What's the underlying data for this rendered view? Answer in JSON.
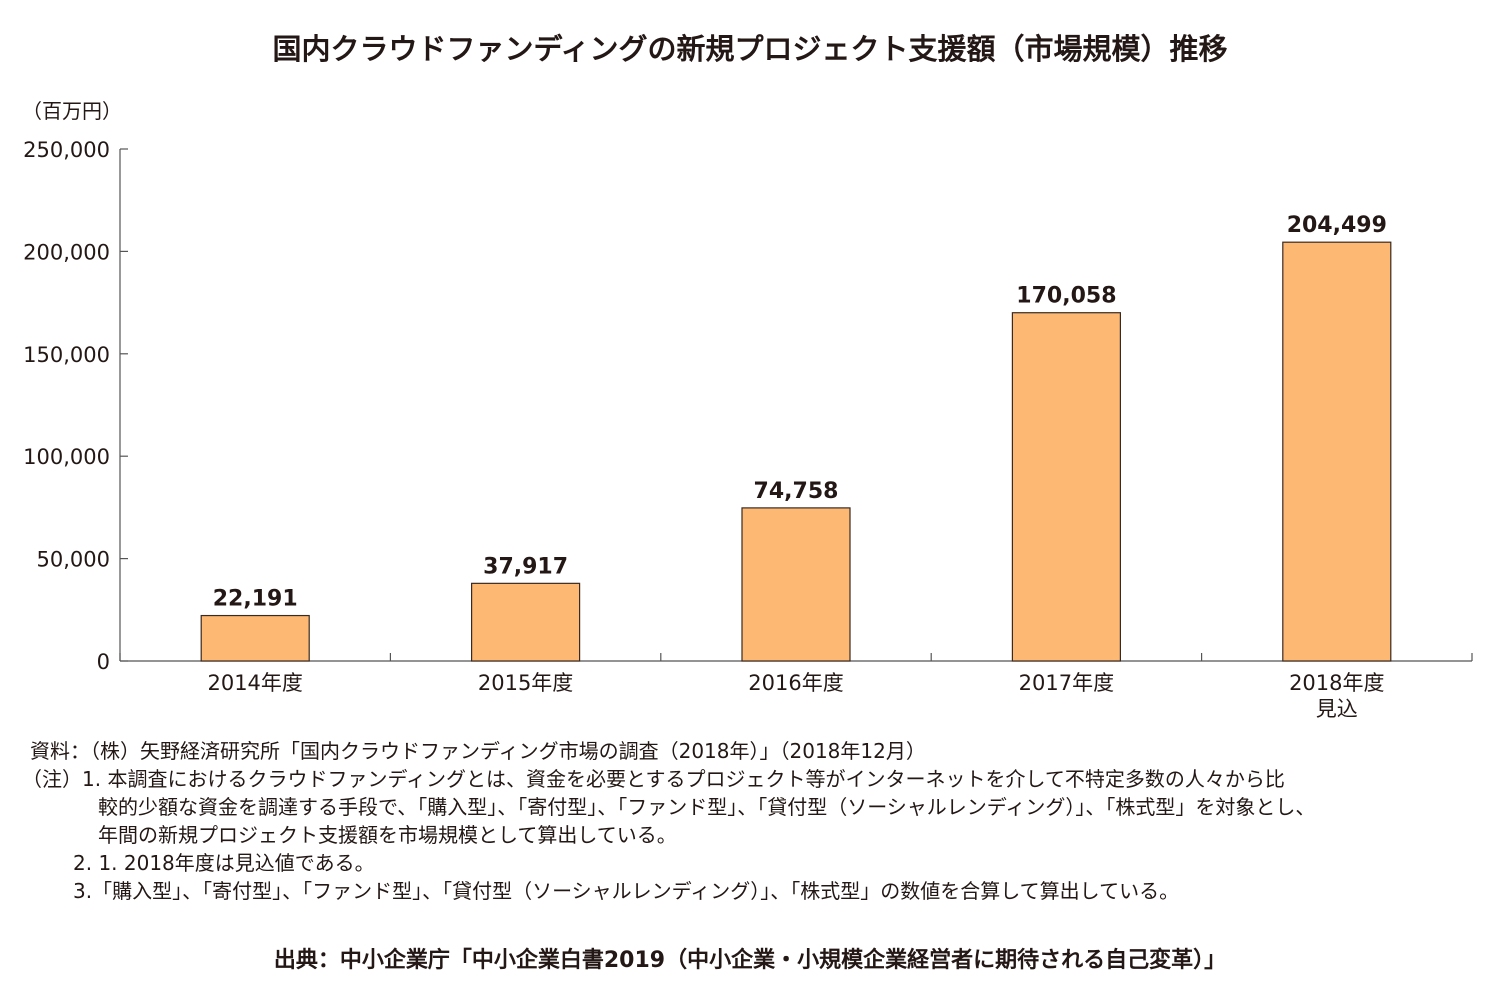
{
  "chart_data": {
    "type": "bar",
    "title": "国内クラウドファンディングの新規プロジェクト支援額（市場規模）推移",
    "ylabel": "（百万円）",
    "xlabel": "",
    "categories": [
      "2014年度",
      "2015年度",
      "2016年度",
      "2017年度",
      "2018年度\n見込"
    ],
    "values": [
      22191,
      37917,
      74758,
      170058,
      204499
    ],
    "data_labels": [
      "22,191",
      "37,917",
      "74,758",
      "170,058",
      "204,499"
    ],
    "ylim": [
      0,
      250000
    ],
    "yticks": [
      0,
      50000,
      100000,
      150000,
      200000,
      250000
    ],
    "ytick_labels": [
      "0",
      "50,000",
      "100,000",
      "150,000",
      "200,000",
      "250,000"
    ],
    "grid": false,
    "bar_color": "#FDB874",
    "bar_edge_color": "#3a2a20"
  },
  "notes": {
    "source_line": "資料：（株）矢野経済研究所「国内クラウドファンディング市場の調査（2018年）」（2018年12月）",
    "note1_line1": "（注）1. 本調査におけるクラウドファンディングとは、資金を必要とするプロジェクト等がインターネットを介して不特定多数の人々から比",
    "note1_line2": "較的少額な資金を調達する手段で、「購入型」、「寄付型」、「ファンド型」、「貸付型（ソーシャルレンディング）」、「株式型」を対象とし、",
    "note1_line3": "年間の新規プロジェクト支援額を市場規模として算出している。",
    "note2": "2. 1. 2018年度は見込値である。",
    "note3": "3.「購入型」、「寄付型」、「ファンド型」、「貸付型（ソーシャルレンディング）」、「株式型」の数値を合算して算出している。"
  },
  "footer": {
    "source": "出典：中小企業庁「中小企業白書2019（中小企業・小規模企業経営者に期待される自己変革）」"
  }
}
